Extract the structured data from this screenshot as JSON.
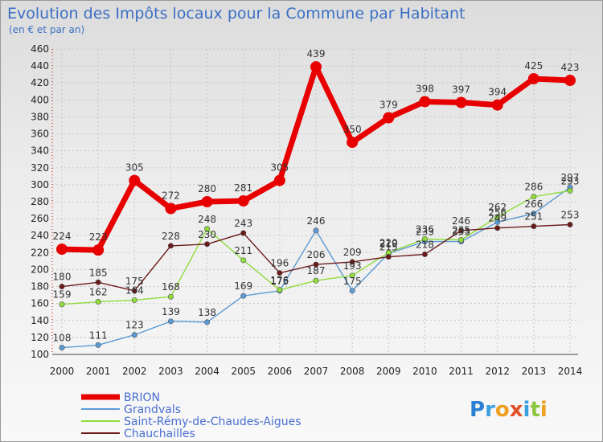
{
  "title": "Evolution des Impôts locaux pour la Commune par Habitant",
  "subtitle": "(en € et par an)",
  "logo": "Proxiti",
  "chart_data": {
    "type": "line",
    "x": [
      "2000",
      "2001",
      "2002",
      "2003",
      "2004",
      "2005",
      "2006",
      "2007",
      "2008",
      "2009",
      "2010",
      "2011",
      "2012",
      "2013",
      "2014"
    ],
    "ylim": [
      100,
      460
    ],
    "yticks": [
      100,
      120,
      140,
      160,
      180,
      200,
      220,
      240,
      260,
      280,
      300,
      320,
      340,
      360,
      380,
      400,
      420,
      440,
      460
    ],
    "grid": true,
    "legend_position": "bottom-left",
    "series": [
      {
        "name": "BRION",
        "color": "#e80000",
        "values": [
          224,
          223,
          305,
          272,
          280,
          281,
          305,
          439,
          350,
          379,
          398,
          397,
          394,
          425,
          423
        ],
        "labels": [
          "224",
          "223",
          "305",
          "272",
          "280",
          "281",
          "305",
          "439",
          "350",
          "379",
          "398",
          "397",
          "394",
          "425",
          "423"
        ]
      },
      {
        "name": "Grandvals",
        "color": "#5b9bd5",
        "values": [
          108,
          111,
          123,
          139,
          138,
          169,
          175,
          246,
          175,
          219,
          233,
          233,
          256,
          266,
          297
        ],
        "labels": [
          "108",
          "111",
          "123",
          "139",
          "138",
          "169",
          "175",
          "246",
          "175",
          "219",
          "233",
          "233",
          "256",
          "266",
          "297"
        ]
      },
      {
        "name": "Saint-Rémy-de-Chaudes-Aigues",
        "color": "#8fdc3c",
        "values": [
          159,
          162,
          164,
          168,
          248,
          211,
          176,
          187,
          193,
          220,
          236,
          235,
          262,
          286,
          293
        ],
        "labels": [
          "159",
          "162",
          "164",
          "168",
          "248",
          "211",
          "176",
          "187",
          "193",
          "220",
          "236",
          "235",
          "262",
          "286",
          "293"
        ]
      },
      {
        "name": "Chauchailles",
        "color": "#6b1a1a",
        "values": [
          180,
          185,
          175,
          228,
          230,
          243,
          196,
          206,
          209,
          215,
          218,
          246,
          249,
          251,
          253
        ],
        "labels": [
          "180",
          "185",
          "175",
          "228",
          "230",
          "243",
          "196",
          "206",
          "209",
          "215",
          "218",
          "246",
          "249",
          "251",
          "253"
        ]
      }
    ]
  }
}
